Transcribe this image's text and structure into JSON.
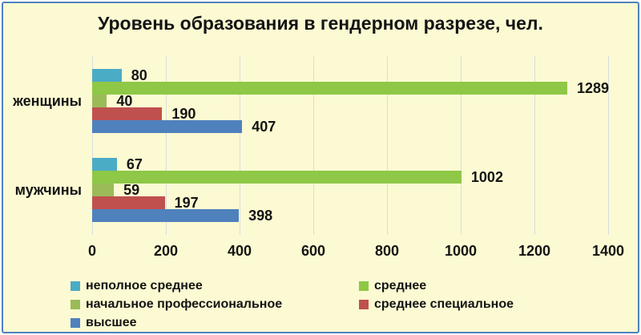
{
  "window": {
    "background": "#FFFFFF",
    "border_color": "#4F81BD",
    "canvas_fill": "#FCFAD2"
  },
  "title": "Уровень образования в гендерном разрезе, чел.",
  "chart_data": {
    "type": "bar",
    "orientation": "horizontal",
    "title": "Уровень образования в гендерном разрезе, чел.",
    "categories": [
      "женщины",
      "мужчины"
    ],
    "series": [
      {
        "name": "неполное среднее",
        "color": "#4BACC6",
        "values": [
          80,
          67
        ]
      },
      {
        "name": "среднее",
        "color": "#8EC846",
        "values": [
          1289,
          1002
        ]
      },
      {
        "name": "начальное профессиональное",
        "color": "#9BBB59",
        "values": [
          40,
          59
        ]
      },
      {
        "name": "среднее специальное",
        "color": "#C0504D",
        "values": [
          190,
          197
        ]
      },
      {
        "name": "высшее",
        "color": "#4F81BD",
        "values": [
          407,
          398
        ]
      }
    ],
    "xlim": [
      0,
      1400
    ],
    "xticks": [
      "0",
      "200",
      "400",
      "600",
      "800",
      "1000",
      "1200",
      "1400"
    ],
    "grid": true,
    "gridline_color": "#D9DCE0",
    "legend_position": "bottom",
    "legend_layout": {
      "columns": [
        {
          "x": 84,
          "series_indexes": [
            0,
            2,
            4
          ]
        },
        {
          "x": 444,
          "series_indexes": [
            1,
            3
          ]
        }
      ],
      "row_tops": [
        343,
        366,
        389
      ]
    }
  }
}
